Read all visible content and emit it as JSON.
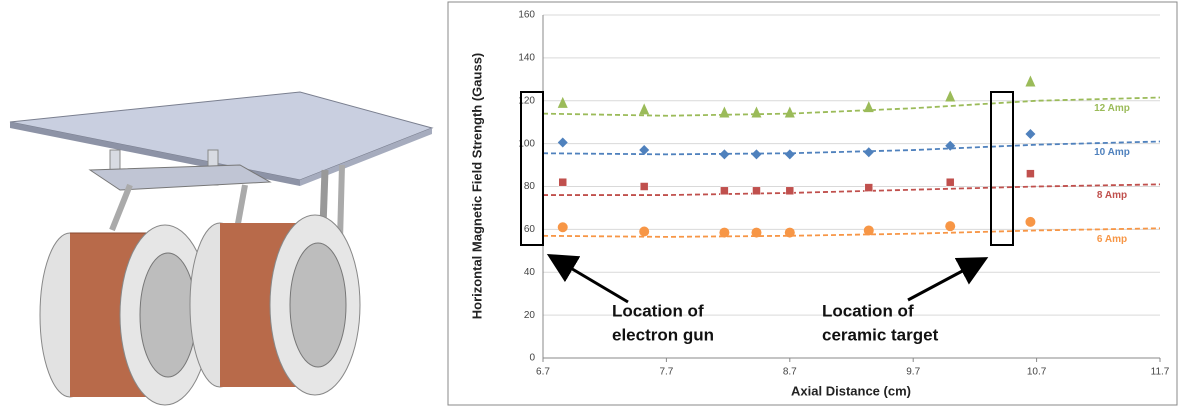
{
  "chart_data": {
    "type": "scatter",
    "x_label": "Axial Distance (cm)",
    "y_label": "Horizontal Magnetic Field Strength (Gauss)",
    "xlim": [
      6.7,
      11.7
    ],
    "xticks": [
      6.7,
      7.7,
      8.7,
      9.7,
      10.7,
      11.7
    ],
    "ylim": [
      0,
      160
    ],
    "yticks": [
      0,
      20,
      40,
      60,
      80,
      100,
      120,
      140,
      160
    ],
    "grid": true,
    "x": [
      6.86,
      7.52,
      8.17,
      8.43,
      8.7,
      9.34,
      10.0,
      10.65
    ],
    "trend_x": [
      6.7,
      7.7,
      8.7,
      9.7,
      10.7,
      11.7
    ],
    "series": [
      {
        "name": "12 Amp",
        "color": "#9bbb59",
        "marker": "triangle",
        "values": [
          119,
          116,
          114.5,
          114.5,
          114.5,
          117,
          122,
          129
        ],
        "trend": [
          114,
          113,
          114,
          116.5,
          120,
          121.5
        ]
      },
      {
        "name": "10 Amp",
        "color": "#4f81bd",
        "marker": "diamond",
        "values": [
          100.5,
          97,
          95,
          95,
          95,
          96,
          99,
          104.5
        ],
        "trend": [
          95.5,
          95,
          95.5,
          97,
          99.5,
          101
        ]
      },
      {
        "name": "8 Amp",
        "color": "#c0504d",
        "marker": "square",
        "values": [
          82,
          80,
          78,
          78,
          78,
          79.5,
          82,
          86
        ],
        "trend": [
          76,
          76,
          77,
          78.5,
          80,
          81
        ]
      },
      {
        "name": "6 Amp",
        "color": "#f79646",
        "marker": "circle",
        "values": [
          61,
          59,
          58.5,
          58.5,
          58.5,
          59.5,
          61.5,
          63.5
        ],
        "trend": [
          57,
          56.5,
          57,
          58,
          59.5,
          60.5
        ]
      }
    ],
    "annotations": [
      {
        "lines": [
          "Location of",
          "electron gun"
        ]
      },
      {
        "lines": [
          "Location of",
          "ceramic target"
        ]
      }
    ]
  }
}
